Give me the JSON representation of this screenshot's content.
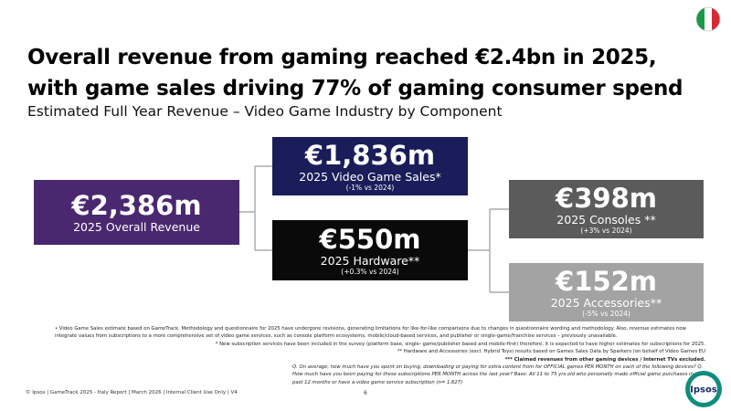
{
  "header": {
    "title_lines": [
      "Overall revenue from gaming reached €2.4bn in 2025,",
      "with game sales driving 77% of gaming consumer spend"
    ],
    "subtitle": "Estimated Full Year Revenue – Video Game Industry by Component"
  },
  "boxes": [
    {
      "value": "€2,386m",
      "label": "2025 Overall Revenue"
    },
    {
      "value": "€1,836m",
      "label": "2025 Video Game Sales*",
      "change": "(-1% vs 2024)"
    },
    {
      "value": "€550m",
      "label": "2025 Hardware**",
      "change": "(+0.3% vs 2024)"
    },
    {
      "value": "€398m",
      "label": "2025 Consoles **",
      "change": "(+3% vs 2024)"
    },
    {
      "value": "€152m",
      "label": "2025 Accessories**",
      "change": "(-5% vs 2024)"
    }
  ],
  "footnotes": [
    "•   Video Game Sales estimate based on GameTrack. Methodology and questionnaire for 2025 have undergone revisions, generating limitations for like-for-like comparisons due to changes in questionnaire wording and methodology. Also, revenue estimates now integrate values from subscriptions to a more comprehensive set of video game services, such as console platform ecosystems, mobile/cloud-based services, and publisher or single-game/franchise services – previously unavailable.",
    "* New subscription services have been included in the survey (platform base, single- game/publisher based and mobile-first) therefore, it is expected to have higher estimates for subscriptions for 2025.",
    "** Hardware and Accessories (excl. Hybrid Toys) results based on Games Sales Data by Sparkers (on behalf of Video Games EU",
    "*** Claimed revenues from other gaming devices / Internet TVs excluded.",
    "Q. On average, how much have you spent on buying, downloading or paying for extra content from for OFFICIAL games PER MONTH on each of the following devices? Q. How much have you been paying for these subscriptions PER MONTH across the last year? Base: All 11 to 75 yrs old who personally made official game purchases in the past 12 months or have a video game service subscription (n= 1,627)"
  ],
  "footer": "© Ipsos | GameTrack 2025 - Italy Report | March 2026 | Internal Client Use Only | V4",
  "page_number": "6",
  "logo": "Ipsos"
}
